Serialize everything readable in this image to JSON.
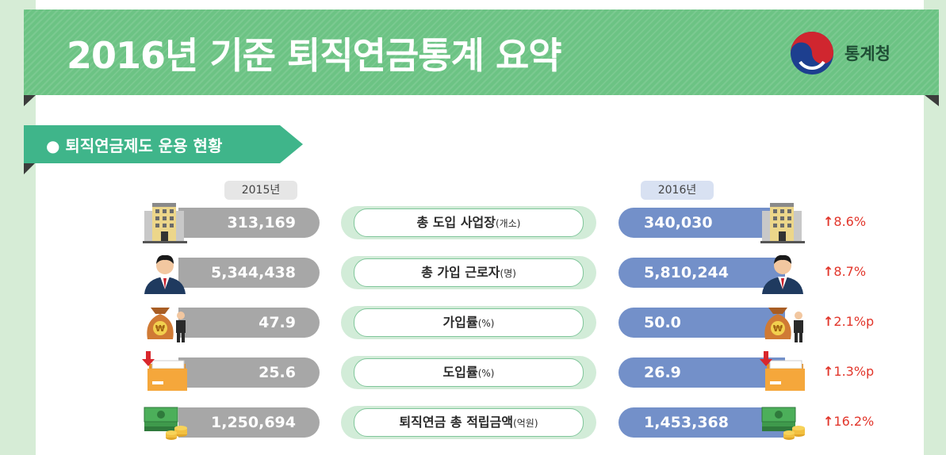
{
  "header": {
    "title": "2016년 기준 퇴직연금통계 요약",
    "logo_text": "통계청"
  },
  "section": {
    "title": "퇴직연금제도 운용 현황"
  },
  "years": {
    "left": "2015년",
    "right": "2016년"
  },
  "rows": [
    {
      "label": "총 도입 사업장",
      "unit": "(개소)",
      "v2015": "313,169",
      "v2016": "340,030",
      "change": "8.6%",
      "icon": "building-icon"
    },
    {
      "label": "총 가입 근로자",
      "unit": "(명)",
      "v2015": "5,344,438",
      "v2016": "5,810,244",
      "change": "8.7%",
      "icon": "worker-icon"
    },
    {
      "label": "가입률",
      "unit": "(%)",
      "v2015": "47.9",
      "v2016": "50.0",
      "change": "2.1%p",
      "icon": "money-bag-icon"
    },
    {
      "label": "도입률",
      "unit": "(%)",
      "v2015": "25.6",
      "v2016": "26.9",
      "change": "1.3%p",
      "icon": "folder-icon"
    },
    {
      "label": "퇴직연금 총 적립금액",
      "unit": "(억원)",
      "v2015": "1,250,694",
      "v2016": "1,453,368",
      "change": "16.2%",
      "icon": "cash-stack-icon"
    }
  ],
  "colors": {
    "banner": "#6cc384",
    "section": "#3fb58a",
    "bar_2015": "#a7a7a7",
    "bar_2016": "#7390c9",
    "increase": "#e2362b"
  }
}
